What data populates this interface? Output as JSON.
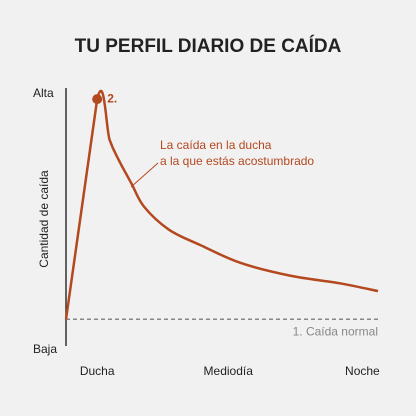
{
  "chart_data": {
    "type": "line",
    "title": "TU PERFIL DIARIO DE CAÍDA",
    "y_label": "Cantidad de caída",
    "x": [
      0,
      10,
      14,
      17,
      21,
      25,
      33,
      43,
      56,
      72,
      88,
      100
    ],
    "series": [
      {
        "name": "La caída en la ducha a la que estás acostumbrado",
        "color": "#b4481f",
        "values": [
          12,
          98,
          82,
          74,
          65,
          56,
          47,
          41,
          34,
          29,
          26,
          23
        ]
      }
    ],
    "annotation": [
      "La caída en la ducha",
      "a la que estás acostumbrado"
    ],
    "peak_label": "2.",
    "reference": {
      "label": "1. Caída normal",
      "value": 12,
      "color": "#888888"
    },
    "xlim": [
      0,
      100
    ],
    "xticks": [
      {
        "value": 10,
        "label": "Ducha"
      },
      {
        "value": 52,
        "label": "Mediodía"
      },
      {
        "value": 95,
        "label": "Noche"
      }
    ],
    "ylim": [
      0,
      100
    ],
    "yticks": [
      {
        "value": 0,
        "label": "Baja"
      },
      {
        "value": 100,
        "label": "Alta"
      }
    ]
  }
}
